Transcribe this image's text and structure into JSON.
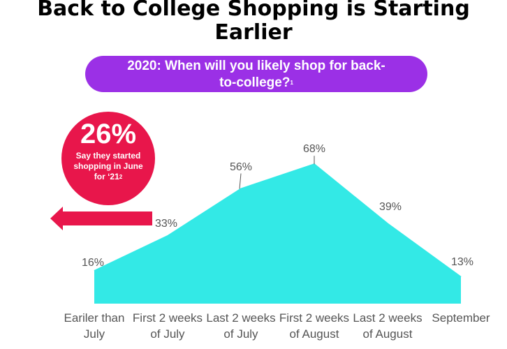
{
  "chart_data": {
    "type": "area",
    "title": "Back to College Shopping is Starting Earlier",
    "subtitle": "2020: When will you likely shop for back-to-college?",
    "subtitle_note": "1",
    "annotation": {
      "value": "26%",
      "text": "Say they started shopping in June for ‘21",
      "note": "2"
    },
    "categories": [
      "Eariler than July",
      "First 2 weeks of July",
      "Last 2 weeks of July",
      "First 2 weeks of August",
      "Last 2 weeks of August",
      "September"
    ],
    "values": [
      16,
      33,
      56,
      68,
      39,
      13
    ],
    "value_labels": [
      "16%",
      "33%",
      "56%",
      "68%",
      "39%",
      "13%"
    ],
    "color": "#33e9e6",
    "ylim": [
      0,
      80
    ]
  }
}
